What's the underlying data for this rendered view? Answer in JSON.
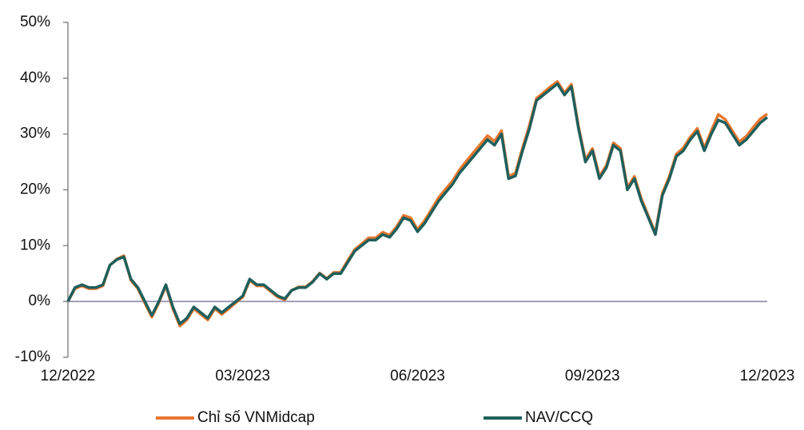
{
  "chart_data": {
    "type": "line",
    "categories": [
      "12/2022",
      null,
      null,
      null,
      null,
      null,
      null,
      null,
      null,
      null,
      null,
      null,
      null,
      null,
      null,
      null,
      null,
      null,
      null,
      null,
      null,
      null,
      null,
      null,
      null,
      "03/2023",
      null,
      null,
      null,
      null,
      null,
      null,
      null,
      null,
      null,
      null,
      null,
      null,
      null,
      null,
      null,
      null,
      null,
      null,
      null,
      null,
      null,
      null,
      null,
      null,
      "06/2023",
      null,
      null,
      null,
      null,
      null,
      null,
      null,
      null,
      null,
      null,
      null,
      null,
      null,
      null,
      null,
      null,
      null,
      null,
      null,
      null,
      null,
      null,
      null,
      null,
      "09/2023",
      null,
      null,
      null,
      null,
      null,
      null,
      null,
      null,
      null,
      null,
      null,
      null,
      null,
      null,
      null,
      null,
      null,
      null,
      null,
      null,
      null,
      null,
      null,
      null,
      "12/2023"
    ],
    "series": [
      {
        "name": "Chỉ số VNMidcap",
        "color": "#e8772e",
        "values": [
          0,
          2.3,
          2.8,
          2.3,
          2.3,
          2.8,
          6.5,
          7.6,
          8.2,
          3.8,
          2.3,
          -0.3,
          -2.8,
          -0.2,
          2.8,
          -1.3,
          -4.4,
          -3.3,
          -1.3,
          -2.3,
          -3.3,
          -1.3,
          -2.3,
          -1.3,
          -0.2,
          0.8,
          3.8,
          2.8,
          2.8,
          1.8,
          0.8,
          0.3,
          2,
          2.6,
          2.6,
          3.6,
          5.1,
          4.1,
          5.2,
          5.2,
          7.3,
          9.3,
          10.3,
          11.4,
          11.4,
          12.4,
          11.9,
          13.4,
          15.4,
          15,
          12.9,
          14.5,
          16.5,
          18.6,
          20.1,
          21.6,
          23.6,
          25.2,
          26.7,
          28.2,
          29.7,
          28.7,
          30.6,
          22.4,
          23,
          27.5,
          31.6,
          36.4,
          37.4,
          38.5,
          39.4,
          37.4,
          38.9,
          31.4,
          25.4,
          27.4,
          22.4,
          24.4,
          28.4,
          27.4,
          20.4,
          22.4,
          18.4,
          15.3,
          12.3,
          19.4,
          22.4,
          26.4,
          27.5,
          29.5,
          31,
          27.5,
          30.6,
          33.5,
          32.6,
          30.6,
          28.6,
          29.6,
          31.2,
          32.7,
          33.6
        ]
      },
      {
        "name": "NAV/CCQ",
        "color": "#1f5f5b",
        "values": [
          0,
          2.5,
          3,
          2.5,
          2.5,
          3,
          6.5,
          7.5,
          8,
          4,
          2.5,
          0,
          -2.5,
          0,
          3,
          -1,
          -4,
          -3,
          -1,
          -2,
          -3,
          -1,
          -2,
          -1,
          0,
          1,
          4,
          3,
          3,
          2,
          1,
          0.5,
          2,
          2.5,
          2.5,
          3.5,
          5,
          4,
          5,
          5,
          7,
          9,
          10,
          11,
          11,
          12,
          11.5,
          13,
          15,
          14.5,
          12.5,
          14,
          16,
          18,
          19.5,
          21,
          23,
          24.5,
          26,
          27.5,
          29,
          28,
          30,
          22,
          22.5,
          27,
          31,
          36,
          37,
          38,
          39,
          37,
          38.5,
          31,
          25,
          27,
          22,
          24,
          28,
          27,
          20,
          22,
          18,
          15,
          12,
          19,
          22,
          26,
          27,
          29,
          30.5,
          27,
          30,
          32.5,
          32,
          30,
          28,
          29,
          30.5,
          32,
          33
        ]
      }
    ],
    "ylim": [
      -10,
      50
    ],
    "yticks": [
      {
        "value": -10,
        "label": "-10%"
      },
      {
        "value": 0,
        "label": "0%"
      },
      {
        "value": 10,
        "label": "10%"
      },
      {
        "value": 20,
        "label": "20%"
      },
      {
        "value": 30,
        "label": "30%"
      },
      {
        "value": 40,
        "label": "40%"
      },
      {
        "value": 50,
        "label": "50%"
      }
    ],
    "legend": "bottom",
    "grid": false
  }
}
